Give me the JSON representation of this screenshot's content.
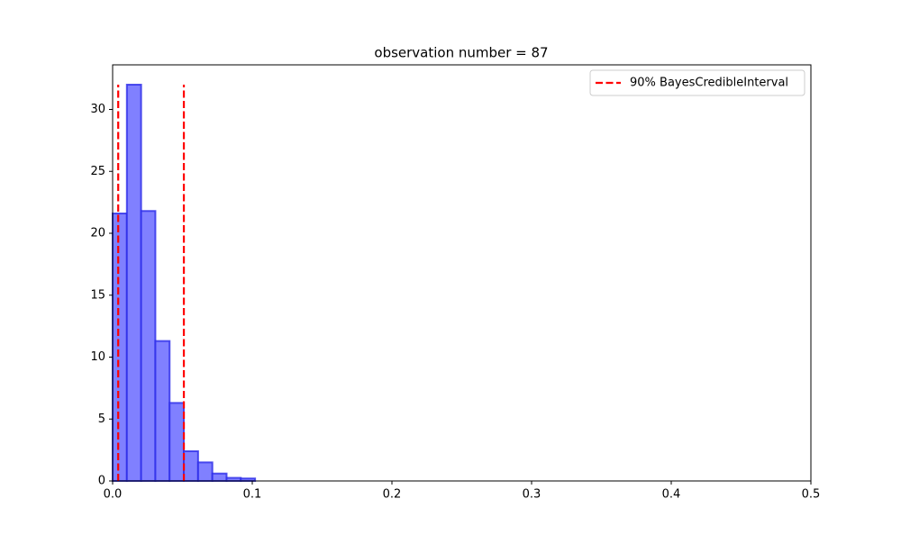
{
  "chart_data": {
    "type": "histogram",
    "title": "observation number = 87",
    "bins": [
      0,
      0.0102,
      0.0204,
      0.0306,
      0.0408,
      0.051,
      0.0612,
      0.0714,
      0.0816,
      0.0918,
      0.102
    ],
    "values": [
      21.6,
      32.0,
      21.8,
      11.3,
      6.3,
      2.4,
      1.5,
      0.6,
      0.25,
      0.2
    ],
    "color": "#8080ff",
    "edgecolor": "#2a2ae8",
    "vlines": {
      "name": "90% BayesCredibleInterval",
      "color": "#ff0000",
      "x": [
        0.004,
        0.051
      ],
      "ymin": 0,
      "ymax": 32
    },
    "xlim": [
      0,
      0.5
    ],
    "ylim": [
      0,
      33.6
    ],
    "xticks": [
      {
        "value": 0,
        "label": "0.0"
      },
      0.1,
      0.2,
      0.3,
      0.4,
      0.5
    ],
    "yticks": [
      0,
      5,
      10,
      15,
      20,
      25,
      30
    ],
    "legend": "upper right",
    "grid": false
  }
}
